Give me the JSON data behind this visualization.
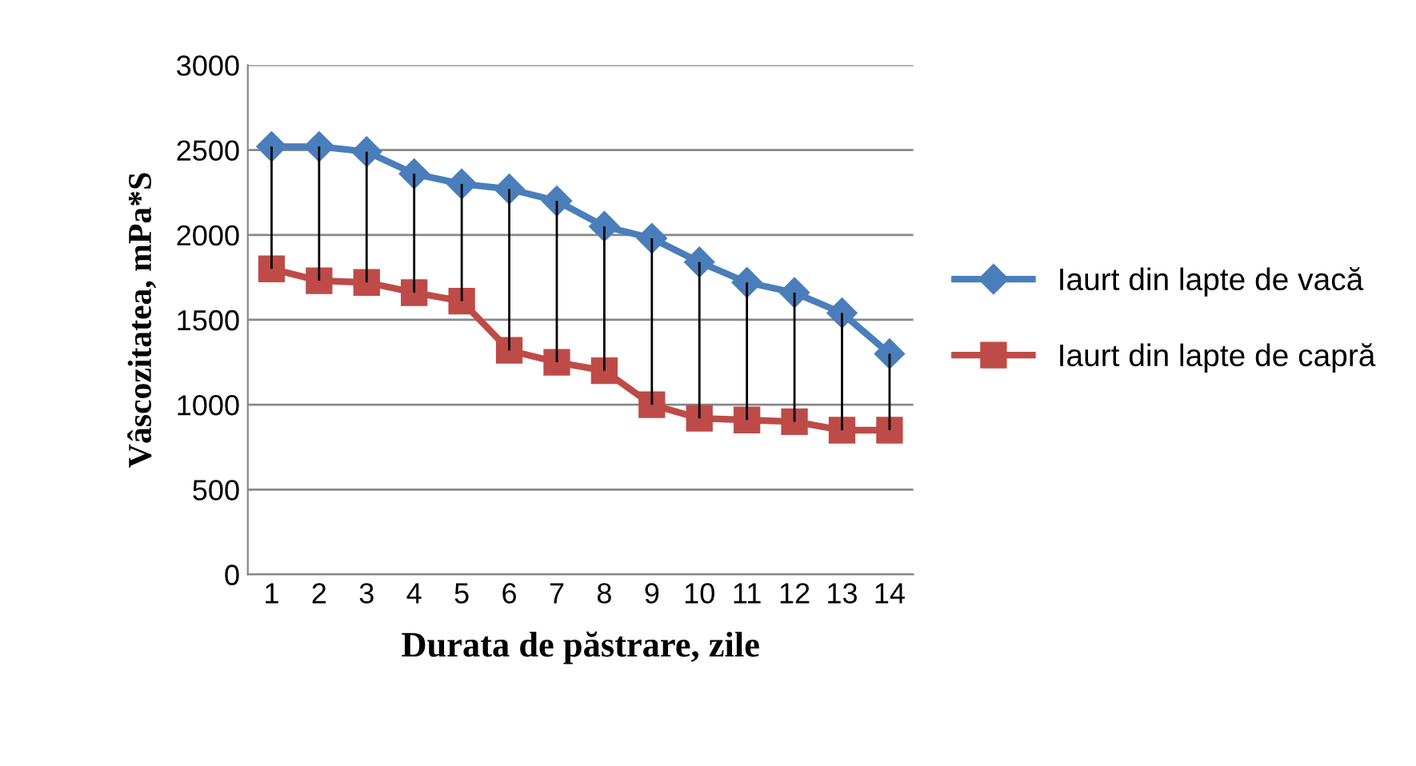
{
  "chart_data": {
    "type": "line",
    "xlabel": "Durata de păstrare, zile",
    "ylabel": "Vâscozitatea, mPa*S",
    "categories": [
      "1",
      "2",
      "3",
      "4",
      "5",
      "6",
      "7",
      "8",
      "9",
      "10",
      "11",
      "12",
      "13",
      "14"
    ],
    "series": [
      {
        "name": "Iaurt din lapte de vacă",
        "color": "#4a7ebb",
        "marker": "diamond",
        "values": [
          2520,
          2520,
          2490,
          2360,
          2300,
          2270,
          2200,
          2050,
          1980,
          1840,
          1720,
          1660,
          1540,
          1300
        ],
        "errors": [
          [
            1800,
            2520
          ],
          [
            1730,
            2520
          ],
          [
            1720,
            2490
          ],
          [
            1660,
            2360
          ],
          [
            1610,
            2300
          ],
          [
            1320,
            2270
          ],
          [
            1250,
            2200
          ],
          [
            1200,
            2050
          ],
          [
            1000,
            1980
          ],
          [
            920,
            1840
          ],
          [
            910,
            1720
          ],
          [
            900,
            1660
          ],
          [
            850,
            1540
          ],
          [
            850,
            1300
          ]
        ]
      },
      {
        "name": "Iaurt din lapte de capră",
        "color": "#be4b48",
        "marker": "square",
        "values": [
          1800,
          1730,
          1720,
          1660,
          1610,
          1320,
          1250,
          1200,
          1000,
          920,
          910,
          900,
          850,
          850
        ]
      }
    ],
    "ylim": [
      0,
      3000
    ],
    "yticks": [
      0,
      500,
      1000,
      1500,
      2000,
      2500,
      3000
    ],
    "grid": "y",
    "legend": "right"
  }
}
